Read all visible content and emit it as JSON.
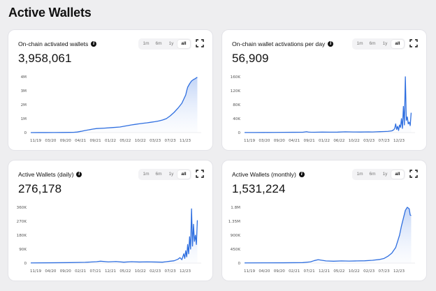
{
  "page": {
    "title": "Active Wallets"
  },
  "range_options": [
    "1m",
    "6m",
    "1y",
    "all"
  ],
  "selected_range": "all",
  "colors": {
    "line": "#2f6fe0",
    "fill_top": "#8fb1f0",
    "fill_bottom": "#eef3fd",
    "grid": "#dcdce0"
  },
  "cards": [
    {
      "title": "On-chain activated wallets",
      "value": "3,958,061",
      "chart_data": {
        "type": "area",
        "x_tick_labels": [
          "11/19",
          "03/20",
          "09/20",
          "04/21",
          "09/21",
          "01/22",
          "05/22",
          "10/22",
          "03/23",
          "07/23",
          "11/23"
        ],
        "y_tick_labels": [
          "0",
          "1M",
          "2M",
          "3M",
          "4M"
        ],
        "ylim": [
          0,
          4000000
        ],
        "series": [
          {
            "x": [
              0,
              4,
              8,
              12,
              16,
              20,
              22,
              24,
              26,
              28,
              32,
              34,
              38,
              42,
              46,
              48,
              50,
              52,
              54,
              56,
              58,
              60,
              62,
              64,
              66,
              68,
              70,
              72,
              74,
              76,
              78,
              79,
              80,
              80.5,
              81,
              82,
              83,
              84,
              85,
              85.5,
              86
            ],
            "values": [
              0,
              2000,
              4000,
              6000,
              10000,
              15000,
              20000,
              40000,
              90000,
              150000,
              250000,
              290000,
              320000,
              360000,
              400000,
              450000,
              500000,
              550000,
              590000,
              630000,
              670000,
              700000,
              740000,
              780000,
              830000,
              900000,
              1000000,
              1200000,
              1450000,
              1750000,
              2100000,
              2400000,
              2700000,
              3000000,
              3250000,
              3500000,
              3700000,
              3800000,
              3870000,
              3930000,
              3958061
            ]
          }
        ]
      }
    },
    {
      "title": "On-chain wallet activations per day",
      "value": "56,909",
      "chart_data": {
        "type": "area",
        "x_tick_labels": [
          "11/19",
          "03/20",
          "09/20",
          "04/21",
          "09/21",
          "01/22",
          "06/22",
          "10/22",
          "03/23",
          "07/23",
          "12/23"
        ],
        "y_tick_labels": [
          "0",
          "40K",
          "80K",
          "120K",
          "160K"
        ],
        "ylim": [
          0,
          160000
        ],
        "series": [
          {
            "x": [
              0,
              5,
              10,
              15,
              20,
              25,
              30,
              32,
              33,
              34,
              36,
              40,
              44,
              48,
              52,
              56,
              60,
              64,
              66,
              68,
              70,
              72,
              74,
              76,
              77,
              77.5,
              78,
              78.5,
              79,
              79.5,
              80,
              80.5,
              81,
              81.5,
              82,
              82.5,
              83,
              83.5,
              84,
              84.5,
              85,
              85.5,
              86
            ],
            "values": [
              200,
              300,
              400,
              500,
              800,
              900,
              1000,
              2500,
              1500,
              1200,
              1000,
              1500,
              1200,
              1400,
              2200,
              1800,
              1600,
              2000,
              1800,
              2300,
              2600,
              3000,
              3500,
              5000,
              8000,
              12000,
              25000,
              9000,
              18000,
              6000,
              22000,
              15000,
              40000,
              12000,
              75000,
              22000,
              160000,
              35000,
              45000,
              25000,
              30000,
              20000,
              56909
            ]
          }
        ]
      }
    },
    {
      "title": "Active Wallets (daily)",
      "value": "276,178",
      "chart_data": {
        "type": "area",
        "x_tick_labels": [
          "11/19",
          "04/20",
          "09/20",
          "02/21",
          "07/21",
          "12/21",
          "05/22",
          "10/22",
          "02/23",
          "07/23",
          "12/23"
        ],
        "y_tick_labels": [
          "0",
          "90K",
          "180K",
          "270K",
          "360K"
        ],
        "ylim": [
          0,
          360000
        ],
        "series": [
          {
            "x": [
              0,
              10,
              20,
              28,
              34,
              36,
              40,
              44,
              48,
              52,
              56,
              60,
              64,
              68,
              70,
              72,
              74,
              76,
              77,
              78,
              79,
              79.5,
              80,
              80.5,
              81,
              81.5,
              82,
              82.5,
              83,
              83.5,
              84,
              84.5,
              85,
              85.5,
              86
            ],
            "values": [
              1000,
              2000,
              3000,
              5000,
              9000,
              12000,
              8000,
              10000,
              6000,
              9000,
              7000,
              8000,
              7000,
              6000,
              9000,
              12000,
              15000,
              25000,
              35000,
              22000,
              60000,
              30000,
              80000,
              40000,
              120000,
              60000,
              170000,
              90000,
              350000,
              110000,
              250000,
              140000,
              180000,
              120000,
              276178
            ]
          }
        ]
      }
    },
    {
      "title": "Active Wallets (monthly)",
      "value": "1,531,224",
      "chart_data": {
        "type": "area",
        "x_tick_labels": [
          "11/19",
          "04/20",
          "09/20",
          "02/21",
          "07/21",
          "12/21",
          "05/22",
          "10/22",
          "02/23",
          "07/23",
          "12/23"
        ],
        "y_tick_labels": [
          "0",
          "450K",
          "900K",
          "1.35M",
          "1.8M"
        ],
        "ylim": [
          0,
          1800000
        ],
        "series": [
          {
            "x": [
              0,
              10,
              20,
              30,
              34,
              36,
              38,
              40,
              42,
              46,
              50,
              54,
              58,
              62,
              66,
              70,
              72,
              74,
              76,
              78,
              79,
              80,
              81,
              82,
              83,
              84,
              85,
              85.5,
              86
            ],
            "values": [
              5000,
              8000,
              10000,
              15000,
              40000,
              80000,
              110000,
              90000,
              70000,
              60000,
              70000,
              65000,
              70000,
              75000,
              90000,
              120000,
              150000,
              220000,
              320000,
              500000,
              700000,
              900000,
              1200000,
              1450000,
              1700000,
              1800000,
              1750000,
              1550000,
              1531224
            ]
          }
        ]
      }
    }
  ]
}
